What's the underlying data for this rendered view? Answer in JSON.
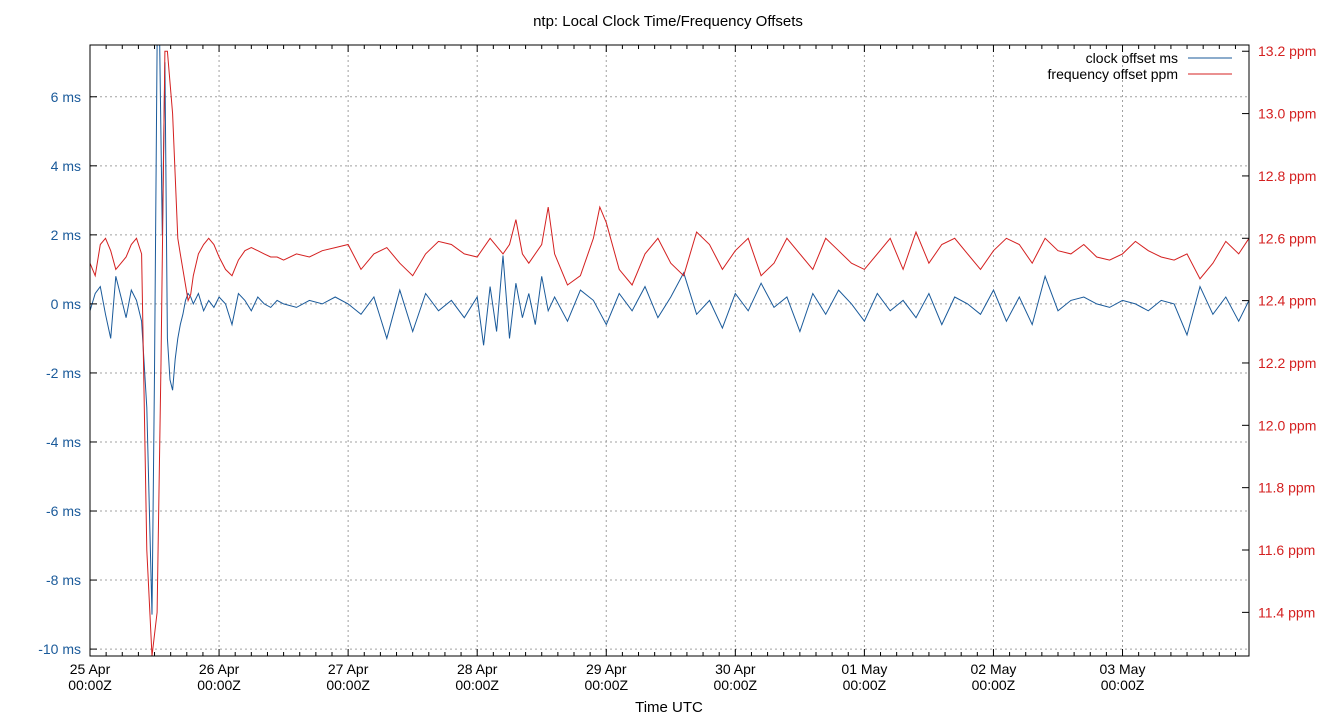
{
  "chart_data": {
    "type": "line",
    "title": "ntp: Local Clock Time/Frequency Offsets",
    "xlabel": "Time UTC",
    "x_ticks": [
      {
        "day": 0,
        "line1": "25 Apr",
        "line2": "00:00Z"
      },
      {
        "day": 1,
        "line1": "26 Apr",
        "line2": "00:00Z"
      },
      {
        "day": 2,
        "line1": "27 Apr",
        "line2": "00:00Z"
      },
      {
        "day": 3,
        "line1": "28 Apr",
        "line2": "00:00Z"
      },
      {
        "day": 4,
        "line1": "29 Apr",
        "line2": "00:00Z"
      },
      {
        "day": 5,
        "line1": "30 Apr",
        "line2": "00:00Z"
      },
      {
        "day": 6,
        "line1": "01 May",
        "line2": "00:00Z"
      },
      {
        "day": 7,
        "line1": "02 May",
        "line2": "00:00Z"
      },
      {
        "day": 8,
        "line1": "03 May",
        "line2": "00:00Z"
      }
    ],
    "xlim": [
      0,
      8.98
    ],
    "y_left": {
      "range": [
        -10.2,
        7.5
      ],
      "ticks": [
        -10,
        -8,
        -6,
        -4,
        -2,
        0,
        2,
        4,
        6
      ],
      "tick_labels": [
        "-10 ms",
        "-8 ms",
        "-6 ms",
        "-4 ms",
        "-2 ms",
        "0 ms",
        "2 ms",
        "4 ms",
        "6 ms"
      ]
    },
    "y_right": {
      "range": [
        11.26,
        13.22
      ],
      "ticks": [
        11.4,
        11.6,
        11.8,
        12.0,
        12.2,
        12.4,
        12.6,
        12.8,
        13.0,
        13.2
      ],
      "tick_labels": [
        "11.4 ppm",
        "11.6 ppm",
        "11.8 ppm",
        "12.0 ppm",
        "12.2 ppm",
        "12.4 ppm",
        "12.6 ppm",
        "12.8 ppm",
        "13.0 ppm",
        "13.2 ppm"
      ]
    },
    "grid": true,
    "legend_position": "top-right",
    "series": [
      {
        "name": "clock offset ms",
        "axis": "left",
        "color": "#1a5a9a",
        "x": [
          0.0,
          0.04,
          0.08,
          0.12,
          0.16,
          0.2,
          0.24,
          0.28,
          0.32,
          0.36,
          0.4,
          0.44,
          0.48,
          0.5,
          0.52,
          0.54,
          0.56,
          0.58,
          0.6,
          0.62,
          0.64,
          0.66,
          0.68,
          0.7,
          0.72,
          0.74,
          0.76,
          0.78,
          0.8,
          0.84,
          0.88,
          0.92,
          0.96,
          1.0,
          1.05,
          1.1,
          1.15,
          1.2,
          1.25,
          1.3,
          1.35,
          1.4,
          1.45,
          1.5,
          1.6,
          1.7,
          1.8,
          1.9,
          2.0,
          2.1,
          2.2,
          2.3,
          2.4,
          2.5,
          2.6,
          2.7,
          2.8,
          2.9,
          3.0,
          3.05,
          3.1,
          3.15,
          3.2,
          3.25,
          3.3,
          3.35,
          3.4,
          3.45,
          3.5,
          3.55,
          3.6,
          3.7,
          3.8,
          3.9,
          4.0,
          4.1,
          4.2,
          4.3,
          4.4,
          4.5,
          4.6,
          4.7,
          4.8,
          4.9,
          5.0,
          5.1,
          5.2,
          5.3,
          5.4,
          5.5,
          5.6,
          5.7,
          5.8,
          5.9,
          6.0,
          6.1,
          6.2,
          6.3,
          6.4,
          6.5,
          6.6,
          6.7,
          6.8,
          6.9,
          7.0,
          7.1,
          7.2,
          7.3,
          7.4,
          7.5,
          7.6,
          7.7,
          7.8,
          7.9,
          8.0,
          8.1,
          8.2,
          8.3,
          8.4,
          8.5,
          8.6,
          8.7,
          8.8,
          8.9,
          8.98
        ],
        "y": [
          -0.2,
          0.3,
          0.5,
          -0.3,
          -1.0,
          0.8,
          0.2,
          -0.4,
          0.4,
          0.1,
          -0.5,
          -3.0,
          -9.0,
          -2.0,
          7.5,
          7.5,
          2.0,
          7.0,
          -1.0,
          -2.2,
          -2.5,
          -1.6,
          -1.0,
          -0.6,
          -0.3,
          0.1,
          0.3,
          0.2,
          0.0,
          0.3,
          -0.2,
          0.1,
          -0.1,
          0.2,
          0.0,
          -0.6,
          0.3,
          0.1,
          -0.2,
          0.2,
          0.0,
          -0.1,
          0.1,
          0.0,
          -0.1,
          0.1,
          0.0,
          0.2,
          0.0,
          -0.3,
          0.2,
          -1.0,
          0.4,
          -0.8,
          0.3,
          -0.2,
          0.1,
          -0.4,
          0.2,
          -1.2,
          0.5,
          -0.8,
          1.4,
          -1.0,
          0.6,
          -0.4,
          0.3,
          -0.6,
          0.8,
          -0.2,
          0.2,
          -0.5,
          0.4,
          0.1,
          -0.6,
          0.3,
          -0.2,
          0.5,
          -0.4,
          0.2,
          0.9,
          -0.3,
          0.1,
          -0.7,
          0.3,
          -0.2,
          0.6,
          -0.1,
          0.2,
          -0.8,
          0.3,
          -0.3,
          0.4,
          0.0,
          -0.5,
          0.3,
          -0.2,
          0.1,
          -0.4,
          0.3,
          -0.6,
          0.2,
          0.0,
          -0.3,
          0.4,
          -0.5,
          0.2,
          -0.6,
          0.8,
          -0.2,
          0.1,
          0.2,
          0.0,
          -0.1,
          0.1,
          0.0,
          -0.2,
          0.1,
          0.0,
          -0.9,
          0.5,
          -0.3,
          0.2,
          -0.5,
          0.1
        ]
      },
      {
        "name": "frequency offset ppm",
        "axis": "right",
        "color": "#d42020",
        "x": [
          0.0,
          0.04,
          0.08,
          0.12,
          0.16,
          0.2,
          0.24,
          0.28,
          0.32,
          0.36,
          0.4,
          0.44,
          0.48,
          0.52,
          0.55,
          0.58,
          0.6,
          0.62,
          0.64,
          0.66,
          0.68,
          0.7,
          0.72,
          0.74,
          0.76,
          0.78,
          0.8,
          0.84,
          0.88,
          0.92,
          0.96,
          1.0,
          1.05,
          1.1,
          1.15,
          1.2,
          1.25,
          1.3,
          1.35,
          1.4,
          1.45,
          1.5,
          1.6,
          1.7,
          1.8,
          1.9,
          2.0,
          2.1,
          2.2,
          2.3,
          2.4,
          2.5,
          2.6,
          2.7,
          2.8,
          2.9,
          3.0,
          3.1,
          3.2,
          3.25,
          3.3,
          3.35,
          3.4,
          3.5,
          3.55,
          3.6,
          3.7,
          3.8,
          3.9,
          3.95,
          4.0,
          4.1,
          4.2,
          4.3,
          4.4,
          4.5,
          4.6,
          4.7,
          4.8,
          4.9,
          5.0,
          5.1,
          5.2,
          5.3,
          5.4,
          5.5,
          5.6,
          5.7,
          5.8,
          5.9,
          6.0,
          6.1,
          6.2,
          6.3,
          6.4,
          6.5,
          6.6,
          6.7,
          6.8,
          6.9,
          7.0,
          7.1,
          7.2,
          7.3,
          7.4,
          7.5,
          7.6,
          7.7,
          7.8,
          7.9,
          8.0,
          8.1,
          8.2,
          8.3,
          8.4,
          8.5,
          8.6,
          8.7,
          8.8,
          8.9,
          8.98
        ],
        "y": [
          12.52,
          12.48,
          12.58,
          12.6,
          12.56,
          12.5,
          12.52,
          12.54,
          12.58,
          12.6,
          12.55,
          11.6,
          11.26,
          11.4,
          12.2,
          13.2,
          13.2,
          13.1,
          13.0,
          12.8,
          12.6,
          12.55,
          12.5,
          12.45,
          12.4,
          12.42,
          12.48,
          12.55,
          12.58,
          12.6,
          12.58,
          12.54,
          12.5,
          12.48,
          12.53,
          12.56,
          12.57,
          12.56,
          12.55,
          12.54,
          12.54,
          12.53,
          12.55,
          12.54,
          12.56,
          12.57,
          12.58,
          12.5,
          12.55,
          12.57,
          12.52,
          12.48,
          12.55,
          12.59,
          12.58,
          12.55,
          12.54,
          12.6,
          12.55,
          12.58,
          12.66,
          12.55,
          12.52,
          12.58,
          12.7,
          12.55,
          12.45,
          12.48,
          12.6,
          12.7,
          12.65,
          12.5,
          12.45,
          12.55,
          12.6,
          12.52,
          12.48,
          12.62,
          12.58,
          12.5,
          12.56,
          12.6,
          12.48,
          12.52,
          12.6,
          12.55,
          12.5,
          12.6,
          12.56,
          12.52,
          12.5,
          12.55,
          12.6,
          12.5,
          12.62,
          12.52,
          12.58,
          12.6,
          12.55,
          12.5,
          12.56,
          12.6,
          12.58,
          12.52,
          12.6,
          12.56,
          12.55,
          12.58,
          12.54,
          12.53,
          12.55,
          12.59,
          12.56,
          12.54,
          12.53,
          12.55,
          12.47,
          12.52,
          12.59,
          12.55,
          12.6
        ]
      }
    ]
  }
}
